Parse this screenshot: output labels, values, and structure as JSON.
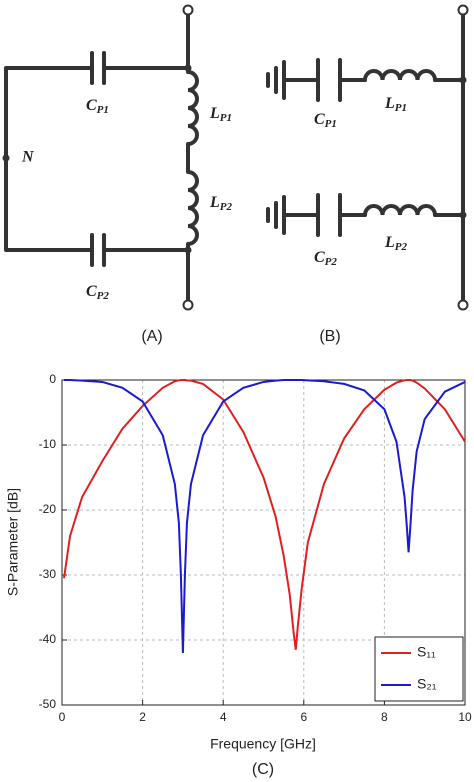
{
  "diagram_a": {
    "panel_label": "(A)",
    "node_label": "N",
    "labels": [
      {
        "symbol": "C",
        "subscript": "P1"
      },
      {
        "symbol": "L",
        "subscript": "P1"
      },
      {
        "symbol": "L",
        "subscript": "P2"
      },
      {
        "symbol": "C",
        "subscript": "P2"
      }
    ]
  },
  "diagram_b": {
    "panel_label": "(B)",
    "labels": [
      {
        "symbol": "C",
        "subscript": "P1"
      },
      {
        "symbol": "L",
        "subscript": "P1"
      },
      {
        "symbol": "C",
        "subscript": "P2"
      },
      {
        "symbol": "L",
        "subscript": "P2"
      }
    ]
  },
  "chart_data": {
    "type": "line",
    "panel_label": "(C)",
    "x_label": "Frequency [GHz]",
    "y_label": "S-Parameter [dB]",
    "xlim": [
      0,
      10
    ],
    "xticks": [
      0,
      2,
      4,
      6,
      8,
      10
    ],
    "ylim": [
      -50,
      0
    ],
    "yticks": [
      0,
      -10,
      -20,
      -30,
      -40,
      -50
    ],
    "grid": true,
    "legend": "lower right",
    "x": [
      0.05,
      0.2,
      0.5,
      1,
      1.5,
      2,
      2.5,
      2.8,
      2.9,
      2.95,
      3,
      3.05,
      3.1,
      3.2,
      3.5,
      4,
      4.5,
      5,
      5.3,
      5.5,
      5.65,
      5.75,
      5.8,
      5.85,
      5.95,
      6.1,
      6.5,
      7,
      7.5,
      8,
      8.3,
      8.5,
      8.55,
      8.6,
      8.65,
      8.7,
      8.8,
      9,
      9.5,
      10
    ],
    "series": [
      {
        "name": "S₁₁",
        "color": "#e02020",
        "values": [
          -30.5,
          -24,
          -18,
          -12.5,
          -7.5,
          -4,
          -1.2,
          -0.2,
          -0.05,
          0,
          0,
          0,
          -0.05,
          -0.1,
          -0.6,
          -3,
          -8,
          -15,
          -21,
          -27,
          -33,
          -39,
          -41.5,
          -38,
          -32,
          -25,
          -16,
          -9,
          -4.5,
          -1.5,
          -0.4,
          -0.05,
          0,
          0,
          0,
          -0.1,
          -0.4,
          -1.3,
          -4.5,
          -9.5
        ]
      },
      {
        "name": "S₂₁",
        "color": "#1a1ad0",
        "values": [
          0,
          0,
          -0.1,
          -0.3,
          -1.2,
          -3.3,
          -8.5,
          -16,
          -22,
          -30,
          -42,
          -30,
          -22,
          -16,
          -8.5,
          -3.3,
          -1.2,
          -0.3,
          -0.1,
          0,
          0,
          0,
          0,
          0,
          0,
          -0.05,
          -0.2,
          -0.6,
          -1.6,
          -4.5,
          -9.5,
          -18,
          -22,
          -26.5,
          -22,
          -17,
          -11,
          -6,
          -1.8,
          -0.3
        ]
      }
    ]
  }
}
